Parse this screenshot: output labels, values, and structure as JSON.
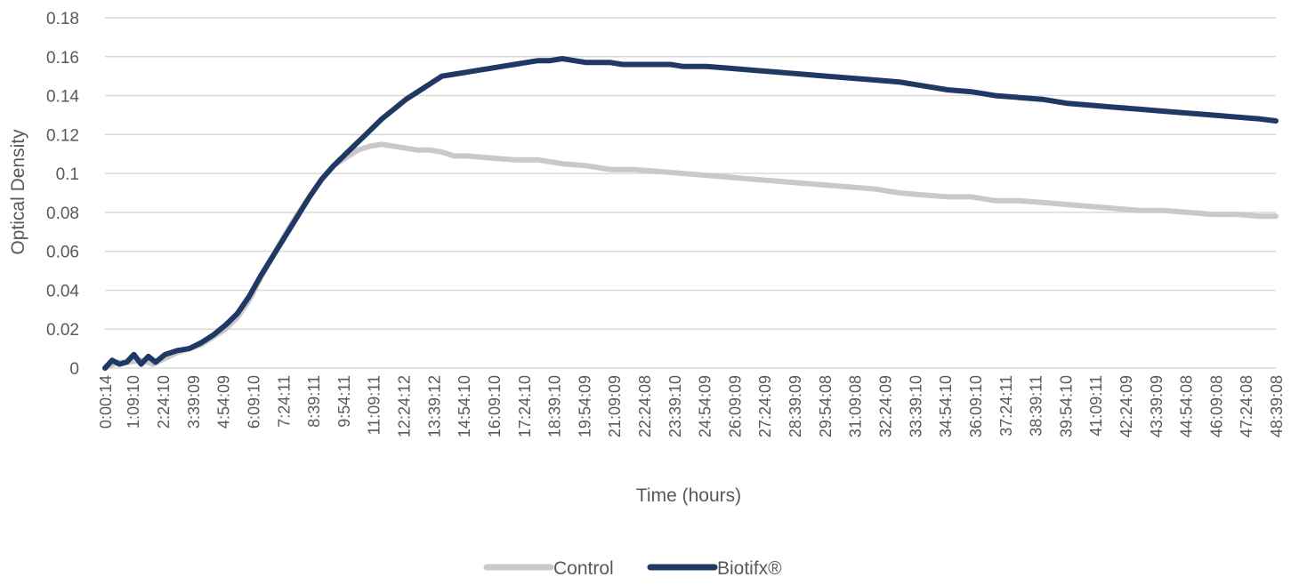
{
  "chart_data": {
    "type": "line",
    "title": "",
    "xlabel": "Time (hours)",
    "ylabel": "Optical Density",
    "ylim": [
      0,
      0.18
    ],
    "y_ticks": [
      "0",
      "0.02",
      "0.04",
      "0.06",
      "0.08",
      "0.1",
      "0.12",
      "0.14",
      "0.16",
      "0.18"
    ],
    "x_ticks": [
      "0:00:14",
      "1:09:10",
      "2:24:10",
      "3:39:09",
      "4:54:09",
      "6:09:10",
      "7:24:11",
      "8:39:11",
      "9:54:11",
      "11:09:11",
      "12:24:12",
      "13:39:12",
      "14:54:10",
      "16:09:10",
      "17:24:10",
      "18:39:10",
      "19:54:09",
      "21:09:09",
      "22:24:08",
      "23:39:10",
      "24:54:09",
      "26:09:09",
      "27:24:09",
      "28:39:09",
      "29:54:08",
      "31:09:08",
      "32:24:09",
      "33:39:10",
      "34:54:10",
      "36:09:10",
      "37:24:11",
      "38:39:11",
      "39:54:10",
      "41:09:11",
      "42:24:09",
      "43:39:09",
      "44:54:08",
      "46:09:08",
      "47:24:08",
      "48:39:08"
    ],
    "x_hours": [
      0.0039,
      1.1528,
      2.4028,
      3.6525,
      4.9025,
      6.1528,
      7.4031,
      8.6531,
      9.9031,
      11.1531,
      12.4033,
      13.6533,
      14.9028,
      16.1528,
      17.4028,
      18.6528,
      19.9025,
      21.1525,
      22.4022,
      23.6528,
      24.9025,
      26.1525,
      27.4025,
      28.6525,
      29.9022,
      31.1522,
      32.4025,
      33.6528,
      34.9028,
      36.1528,
      37.4031,
      38.6531,
      39.9028,
      41.1531,
      42.4025,
      43.6525,
      44.9022,
      46.1522,
      47.4022,
      48.6522
    ],
    "grid": true,
    "legend_position": "bottom",
    "series": [
      {
        "name": "Control",
        "color": "#c9c9c9",
        "x_hours": [
          0,
          0.5,
          1,
          1.5,
          2,
          2.5,
          3,
          3.5,
          4,
          4.5,
          5,
          5.5,
          6,
          6.5,
          7,
          7.5,
          8,
          8.5,
          9,
          9.5,
          10,
          10.5,
          11,
          11.5,
          12,
          12.5,
          13,
          13.5,
          14,
          14.5,
          15,
          16,
          17,
          18,
          19,
          20,
          21,
          22,
          23,
          24,
          25,
          26,
          27,
          28,
          29,
          30,
          31,
          32,
          33,
          34,
          35,
          36,
          37,
          38,
          39,
          40,
          41,
          42,
          43,
          44,
          45,
          46,
          47,
          48,
          48.65
        ],
        "values": [
          0,
          0.003,
          0.003,
          0.004,
          0.002,
          0.005,
          0.008,
          0.01,
          0.012,
          0.016,
          0.02,
          0.026,
          0.035,
          0.047,
          0.058,
          0.069,
          0.079,
          0.088,
          0.097,
          0.104,
          0.108,
          0.112,
          0.114,
          0.115,
          0.114,
          0.113,
          0.112,
          0.112,
          0.111,
          0.109,
          0.109,
          0.108,
          0.107,
          0.107,
          0.105,
          0.104,
          0.102,
          0.102,
          0.101,
          0.1,
          0.099,
          0.098,
          0.097,
          0.096,
          0.095,
          0.094,
          0.093,
          0.092,
          0.09,
          0.089,
          0.088,
          0.088,
          0.086,
          0.086,
          0.085,
          0.084,
          0.083,
          0.082,
          0.081,
          0.081,
          0.08,
          0.079,
          0.079,
          0.078,
          0.078
        ]
      },
      {
        "name": "Biotifx®",
        "color": "#1f3864",
        "x_hours": [
          0,
          0.3,
          0.6,
          0.9,
          1.2,
          1.5,
          1.8,
          2.1,
          2.5,
          3,
          3.5,
          4,
          4.5,
          5,
          5.5,
          6,
          6.5,
          7,
          7.5,
          8,
          8.5,
          9,
          9.5,
          10,
          10.5,
          11,
          11.5,
          12,
          12.5,
          13,
          13.5,
          14,
          14.5,
          15,
          15.5,
          16,
          16.5,
          17,
          17.5,
          18,
          18.5,
          19,
          19.5,
          20,
          20.5,
          21,
          21.5,
          22,
          22.5,
          23,
          23.5,
          24,
          24.5,
          25,
          26,
          27,
          28,
          29,
          30,
          31,
          32,
          33,
          34,
          35,
          36,
          37,
          38,
          39,
          40,
          41,
          42,
          43,
          44,
          45,
          46,
          47,
          48,
          48.65
        ],
        "values": [
          0,
          0.004,
          0.002,
          0.003,
          0.007,
          0.002,
          0.006,
          0.003,
          0.007,
          0.009,
          0.01,
          0.013,
          0.017,
          0.022,
          0.028,
          0.037,
          0.048,
          0.058,
          0.068,
          0.078,
          0.088,
          0.097,
          0.104,
          0.11,
          0.116,
          0.122,
          0.128,
          0.133,
          0.138,
          0.142,
          0.146,
          0.15,
          0.151,
          0.152,
          0.153,
          0.154,
          0.155,
          0.156,
          0.157,
          0.158,
          0.158,
          0.159,
          0.158,
          0.157,
          0.157,
          0.157,
          0.156,
          0.156,
          0.156,
          0.156,
          0.156,
          0.155,
          0.155,
          0.155,
          0.154,
          0.153,
          0.152,
          0.151,
          0.15,
          0.149,
          0.148,
          0.147,
          0.145,
          0.143,
          0.142,
          0.14,
          0.139,
          0.138,
          0.136,
          0.135,
          0.134,
          0.133,
          0.132,
          0.131,
          0.13,
          0.129,
          0.128,
          0.127
        ]
      }
    ]
  }
}
